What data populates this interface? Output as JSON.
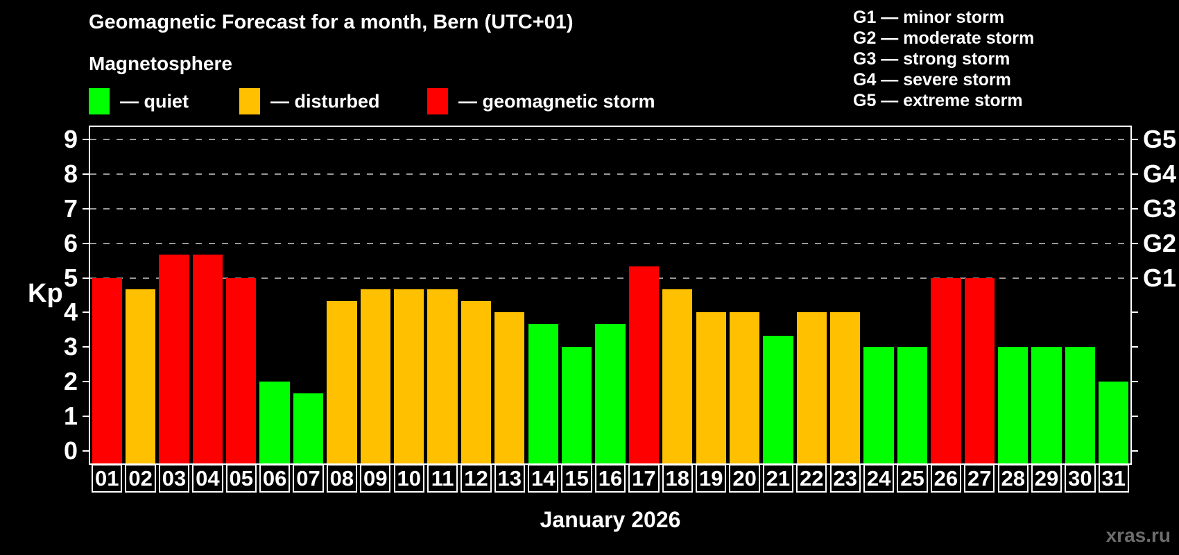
{
  "title": "Geomagnetic Forecast for a month, Bern (UTC+01)",
  "subtitle": "Magnetosphere",
  "legend": [
    {
      "key": "quiet",
      "label": "— quiet",
      "color": "#00ff00"
    },
    {
      "key": "disturbed",
      "label": "— disturbed",
      "color": "#ffc000"
    },
    {
      "key": "storm",
      "label": "— geomagnetic storm",
      "color": "#ff0000"
    }
  ],
  "storm_scale": [
    "G1 — minor storm",
    "G2 — moderate storm",
    "G3 — strong storm",
    "G4 — severe storm",
    "G5 — extreme storm"
  ],
  "watermark": "xras.ru",
  "chart_data": {
    "type": "bar",
    "title": "Geomagnetic Forecast for a month, Bern (UTC+01)",
    "xlabel": "January 2026",
    "ylabel": "Kp",
    "ylim": [
      0,
      9
    ],
    "yticks": [
      0,
      1,
      2,
      3,
      4,
      5,
      6,
      7,
      8,
      9
    ],
    "gridlines_at": [
      5,
      6,
      7,
      8,
      9
    ],
    "grid": true,
    "legend_position": "top",
    "right_axis_labels": [
      {
        "value": 5,
        "label": "G1"
      },
      {
        "value": 6,
        "label": "G2"
      },
      {
        "value": 7,
        "label": "G3"
      },
      {
        "value": 8,
        "label": "G4"
      },
      {
        "value": 9,
        "label": "G5"
      }
    ],
    "categories": [
      "01",
      "02",
      "03",
      "04",
      "05",
      "06",
      "07",
      "08",
      "09",
      "10",
      "11",
      "12",
      "13",
      "14",
      "15",
      "16",
      "17",
      "18",
      "19",
      "20",
      "21",
      "22",
      "23",
      "24",
      "25",
      "26",
      "27",
      "28",
      "29",
      "30",
      "31"
    ],
    "values": [
      5,
      4.67,
      5.67,
      5.67,
      5,
      2,
      1.67,
      4.33,
      4.67,
      4.67,
      4.67,
      4.33,
      4,
      3.67,
      3,
      3.67,
      5.33,
      4.67,
      4,
      4,
      3.33,
      4,
      4,
      3,
      3,
      5,
      5,
      3,
      3,
      3,
      2
    ],
    "statuses": [
      "storm",
      "disturbed",
      "storm",
      "storm",
      "storm",
      "quiet",
      "quiet",
      "disturbed",
      "disturbed",
      "disturbed",
      "disturbed",
      "disturbed",
      "disturbed",
      "quiet",
      "quiet",
      "quiet",
      "storm",
      "disturbed",
      "disturbed",
      "disturbed",
      "quiet",
      "disturbed",
      "disturbed",
      "quiet",
      "quiet",
      "storm",
      "storm",
      "quiet",
      "quiet",
      "quiet",
      "quiet"
    ],
    "colors": {
      "quiet": "#00ff00",
      "disturbed": "#ffc000",
      "storm": "#ff0000"
    }
  }
}
